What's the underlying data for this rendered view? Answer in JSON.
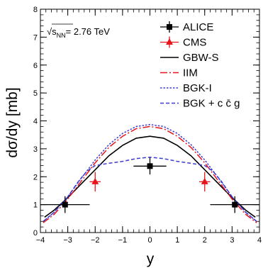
{
  "chart_data": {
    "type": "scatter",
    "xlabel": "y",
    "ylabel": "dσ/dy [mb]",
    "xlim": [
      -4,
      4
    ],
    "ylim": [
      0,
      8
    ],
    "x_ticks": [
      -4,
      -3,
      -2,
      -1,
      0,
      1,
      2,
      3,
      4
    ],
    "y_ticks": [
      0,
      1,
      2,
      3,
      4,
      5,
      6,
      7,
      8
    ],
    "grid": false,
    "legend_position": "top-right",
    "annotation": {
      "prefix": "√s",
      "subscript": "NN",
      "suffix": "= 2.76 TeV"
    },
    "legend": [
      {
        "label": "ALICE",
        "style": "marker-square",
        "color": "#000000"
      },
      {
        "label": "CMS",
        "style": "marker-triangle",
        "color": "#e8141b"
      },
      {
        "label": "GBW-S",
        "style": "solid",
        "color": "#000000"
      },
      {
        "label": "IIM",
        "style": "dash-dot",
        "color": "#e8141b"
      },
      {
        "label": "BGK-I",
        "style": "dotted",
        "color": "#3c3cd2"
      },
      {
        "label": "BGK + c c̄ g",
        "style": "dashed",
        "color": "#3c3cd2"
      }
    ],
    "series": [
      {
        "name": "ALICE",
        "kind": "points",
        "marker": "square",
        "color": "#000000",
        "points": [
          {
            "x": -3.1,
            "y": 1.0,
            "xerr": 0.9,
            "yerr": 0.3
          },
          {
            "x": 0.0,
            "y": 2.38,
            "xerr": 0.6,
            "yerr": 0.3
          },
          {
            "x": 3.1,
            "y": 1.0,
            "xerr": 0.9,
            "yerr": 0.3
          }
        ]
      },
      {
        "name": "CMS",
        "kind": "points",
        "marker": "triangle",
        "color": "#e8141b",
        "points": [
          {
            "x": -2.0,
            "y": 1.82,
            "xerr": 0.2,
            "yerr": 0.35
          },
          {
            "x": 2.0,
            "y": 1.82,
            "xerr": 0.2,
            "yerr": 0.35
          }
        ]
      },
      {
        "name": "GBW-S",
        "kind": "line",
        "style": "solid",
        "color": "#000000",
        "x": [
          -3.85,
          -3.5,
          -3.0,
          -2.5,
          -2.0,
          -1.5,
          -1.0,
          -0.5,
          0.0,
          0.5,
          1.0,
          1.5,
          2.0,
          2.5,
          3.0,
          3.5,
          3.85
        ],
        "y": [
          0.55,
          0.8,
          1.25,
          1.75,
          2.25,
          2.75,
          3.12,
          3.38,
          3.45,
          3.38,
          3.12,
          2.75,
          2.25,
          1.75,
          1.25,
          0.8,
          0.55
        ]
      },
      {
        "name": "IIM",
        "kind": "line",
        "style": "dash-dot",
        "color": "#e8141b",
        "x": [
          -3.9,
          -3.5,
          -3.0,
          -2.5,
          -2.0,
          -1.5,
          -1.0,
          -0.5,
          0.0,
          0.5,
          1.0,
          1.5,
          2.0,
          2.5,
          3.0,
          3.5,
          3.9
        ],
        "y": [
          0.35,
          0.65,
          1.2,
          1.85,
          2.5,
          3.05,
          3.45,
          3.72,
          3.8,
          3.72,
          3.45,
          3.05,
          2.5,
          1.85,
          1.2,
          0.65,
          0.35
        ]
      },
      {
        "name": "BGK-I",
        "kind": "line",
        "style": "dotted",
        "color": "#3c3cd2",
        "x": [
          -3.9,
          -3.5,
          -3.0,
          -2.5,
          -2.0,
          -1.5,
          -1.0,
          -0.5,
          0.0,
          0.5,
          1.0,
          1.5,
          2.0,
          2.5,
          3.0,
          3.5,
          3.9
        ],
        "y": [
          0.4,
          0.72,
          1.28,
          1.95,
          2.6,
          3.15,
          3.55,
          3.8,
          3.87,
          3.8,
          3.55,
          3.15,
          2.6,
          1.95,
          1.28,
          0.72,
          0.4
        ]
      },
      {
        "name": "BGK + c c̄ g",
        "kind": "line",
        "style": "dashed",
        "color": "#3c3cd2",
        "x": [
          -3.9,
          -3.5,
          -3.0,
          -2.6,
          -2.3,
          -2.0,
          -1.5,
          -1.0,
          -0.5,
          0.0,
          0.5,
          1.0,
          1.5,
          2.0,
          2.3,
          2.6,
          3.0,
          3.5,
          3.9
        ],
        "y": [
          0.4,
          0.72,
          1.28,
          1.85,
          2.2,
          2.4,
          2.48,
          2.55,
          2.65,
          2.7,
          2.65,
          2.55,
          2.48,
          2.4,
          2.2,
          1.85,
          1.28,
          0.72,
          0.4
        ]
      }
    ]
  }
}
